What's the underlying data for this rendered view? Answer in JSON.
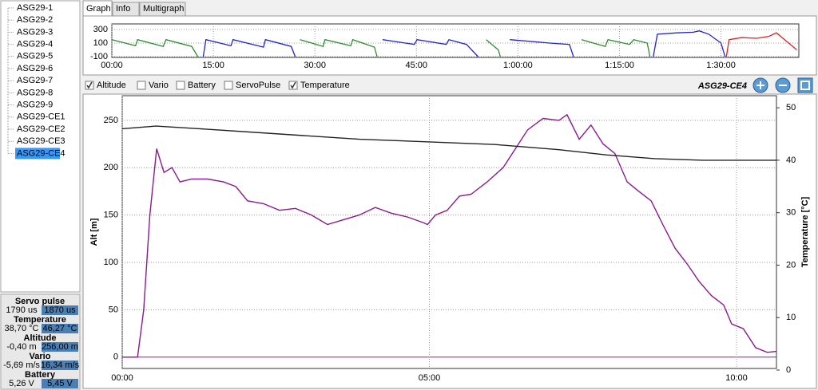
{
  "sidebar": {
    "items": [
      "ASG29-1",
      "ASG29-2",
      "ASG29-3",
      "ASG29-4",
      "ASG29-5",
      "ASG29-6",
      "ASG29-7",
      "ASG29-8",
      "ASG29-9",
      "ASG29-CE1",
      "ASG29-CE2",
      "ASG29-CE3",
      "ASG29-CE4"
    ],
    "selected": 12
  },
  "stats": [
    {
      "name": "Servo pulse",
      "color": "#1e8c1e",
      "min": "1790 us",
      "max": "1870 us"
    },
    {
      "name": "Temperature",
      "color": "#000000",
      "min": "38,70 °C",
      "max": "46,27 °C"
    },
    {
      "name": "Altitude",
      "color": "#8b1a8b",
      "min": "-0,40 m",
      "max": "256,00 m"
    },
    {
      "name": "Vario",
      "color": "#cc1a1a",
      "min": "-5,69 m/s",
      "max": "16,34 m/s"
    },
    {
      "name": "Battery",
      "color": "#1a3fcc",
      "min": "5,26 V",
      "max": "5,45 V"
    }
  ],
  "tabs": [
    "Graph",
    "Info",
    "Multigraph"
  ],
  "active_tab": 0,
  "checkboxes": [
    {
      "label": "Altitude",
      "checked": true
    },
    {
      "label": "Vario",
      "checked": false
    },
    {
      "label": "Battery",
      "checked": false
    },
    {
      "label": "ServoPulse",
      "checked": false
    },
    {
      "label": "Temperature",
      "checked": true
    }
  ],
  "graph_title": "ASG29-CE4",
  "chart_data": [
    {
      "type": "line",
      "xlim": [
        0,
        101.5
      ],
      "ylim": [
        -112,
        382
      ],
      "grid": true,
      "yticks": [
        300,
        100,
        -100
      ],
      "xticks": [
        {
          "value": 0,
          "label": "00:00"
        },
        {
          "value": 15,
          "label": "15:00"
        },
        {
          "value": 30,
          "label": "30:00"
        },
        {
          "value": 45,
          "label": "45:00"
        },
        {
          "value": 60,
          "label": "1:00:00"
        },
        {
          "value": 75,
          "label": "1:15:00"
        },
        {
          "value": 90,
          "label": "1:30:00"
        }
      ],
      "series": [
        {
          "color": "#2e8b2e",
          "x": [
            0,
            3.5,
            3.8,
            7.6,
            8,
            11.8,
            12.7,
            null,
            27.8,
            31.2,
            31.5,
            35.3,
            35.6,
            38.8,
            39.2,
            null,
            55.3,
            57.1,
            57.4,
            null,
            69.4,
            72.9,
            73.3,
            76.5,
            77.1,
            79.1,
            79.5
          ],
          "values": [
            150,
            60,
            150,
            50,
            150,
            50,
            -100,
            null,
            150,
            50,
            150,
            60,
            150,
            40,
            -100,
            null,
            150,
            0,
            -100,
            null,
            150,
            50,
            150,
            80,
            150,
            100,
            -100
          ]
        },
        {
          "color": "#2222cc",
          "x": [
            13.5,
            13.9,
            17.6,
            17.9,
            22.4,
            22.7,
            26.5,
            27.1,
            null,
            40,
            44.7,
            45.1,
            49.4,
            49.8,
            52.4,
            54.1,
            null,
            58.8,
            64.7,
            67.6,
            68.2,
            null,
            80,
            80.6,
            83.5,
            85.9,
            86.8,
            88.2,
            90,
            90.6
          ],
          "values": [
            -100,
            150,
            60,
            150,
            40,
            150,
            50,
            -100,
            null,
            150,
            80,
            150,
            80,
            150,
            80,
            -100,
            null,
            150,
            100,
            80,
            -100,
            null,
            -100,
            230,
            250,
            260,
            280,
            230,
            100,
            -100
          ]
        },
        {
          "color": "#dd2222",
          "x": [
            90.8,
            91.2,
            93,
            95.3,
            97.1,
            98.2,
            99.4,
            101.2
          ],
          "values": [
            -100,
            150,
            180,
            170,
            200,
            250,
            150,
            0
          ]
        }
      ]
    },
    {
      "type": "line",
      "xlim": [
        0,
        10.65
      ],
      "ylim": [
        -12,
        276
      ],
      "y2lim": [
        0.3,
        52.3
      ],
      "grid": true,
      "y_label": "Alt [m]",
      "y2_label": "Temperature [°C]",
      "xticks": [
        {
          "value": 0,
          "label": "00:00"
        },
        {
          "value": 5,
          "label": "05:00"
        },
        {
          "value": 10,
          "label": "10:00"
        }
      ],
      "yticks": [
        0,
        50,
        100,
        150,
        200,
        250
      ],
      "y2ticks": [
        0,
        10,
        20,
        30,
        40,
        50
      ],
      "series": [
        {
          "color": "#8b1a8b",
          "x": [
            0,
            0.25,
            0.35,
            0.45,
            0.56,
            0.68,
            0.81,
            0.94,
            1.13,
            1.39,
            1.65,
            1.85,
            2.04,
            2.3,
            2.56,
            2.82,
            3.08,
            3.34,
            3.6,
            3.86,
            4.12,
            4.38,
            4.64,
            4.9,
            4.97,
            5.1,
            5.29,
            5.49,
            5.68,
            5.94,
            6.2,
            6.4,
            6.6,
            6.85,
            7.11,
            7.24,
            7.44,
            7.63,
            7.83,
            8.02,
            8.22,
            8.41,
            8.61,
            8.8,
            9,
            9.2,
            9.39,
            9.59,
            9.79,
            9.92,
            10.11,
            10.31,
            10.5,
            10.65
          ],
          "values": [
            0,
            0,
            50,
            150,
            220,
            195,
            200,
            185,
            188,
            188,
            185,
            180,
            165,
            162,
            155,
            157,
            150,
            140,
            145,
            150,
            158,
            152,
            148,
            142,
            140,
            150,
            155,
            170,
            172,
            185,
            200,
            220,
            240,
            252,
            250,
            256,
            230,
            245,
            225,
            215,
            185,
            175,
            165,
            140,
            115,
            98,
            80,
            65,
            55,
            35,
            30,
            10,
            5,
            6
          ]
        },
        {
          "color": "#222222",
          "axis": "y2",
          "x": [
            0,
            0.55,
            1.26,
            2.56,
            3.86,
            5,
            6.07,
            7.11,
            7.89,
            8.67,
            9.45,
            10.65
          ],
          "values": [
            46,
            46.5,
            46,
            45,
            44,
            43.5,
            43,
            42,
            41,
            40.3,
            40,
            40
          ]
        }
      ]
    }
  ]
}
